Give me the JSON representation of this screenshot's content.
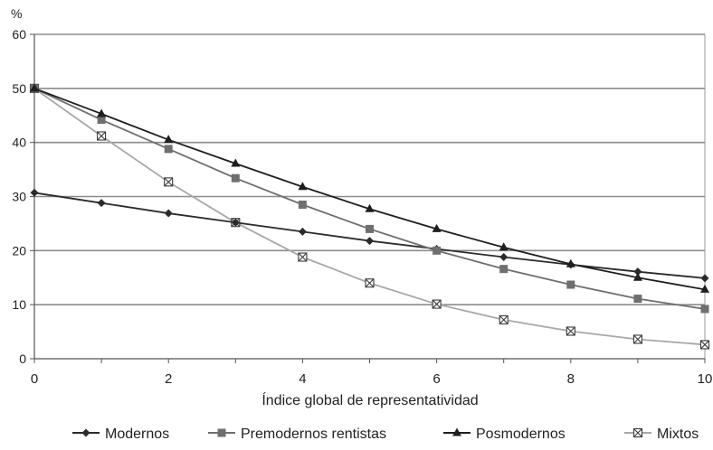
{
  "chart_data": {
    "type": "line",
    "title": "",
    "ylabel": "%",
    "xlabel": "Índice global de representatividad",
    "x": [
      0,
      1,
      2,
      3,
      4,
      5,
      6,
      7,
      8,
      9,
      10
    ],
    "xticks": [
      "0",
      "2",
      "4",
      "6",
      "8",
      "10"
    ],
    "xtick_values": [
      0,
      2,
      4,
      6,
      8,
      10
    ],
    "yticks": [
      "0",
      "10",
      "20",
      "30",
      "40",
      "50",
      "60"
    ],
    "ytick_values": [
      0,
      10,
      20,
      30,
      40,
      50,
      60
    ],
    "xlim": [
      0,
      10
    ],
    "ylim": [
      0,
      60
    ],
    "grid": "horizontal",
    "legend_position": "bottom",
    "series": [
      {
        "name": "Modernos",
        "marker": "diamond",
        "color": "#2b2b2b",
        "values": [
          30.7,
          28.8,
          26.9,
          25.2,
          23.5,
          21.8,
          20.3,
          18.8,
          17.4,
          16.1,
          14.9
        ]
      },
      {
        "name": "Premodernos rentistas",
        "marker": "square",
        "color": "#6f6f6f",
        "values": [
          50.0,
          44.2,
          38.8,
          33.4,
          28.5,
          24.0,
          20.0,
          16.6,
          13.7,
          11.1,
          9.2
        ]
      },
      {
        "name": "Posmodernos",
        "marker": "triangle",
        "color": "#1f1f1f",
        "values": [
          50.0,
          45.3,
          40.5,
          36.1,
          31.8,
          27.7,
          24.0,
          20.6,
          17.5,
          15.0,
          12.8
        ]
      },
      {
        "name": "Mixtos",
        "marker": "crossbox",
        "color": "#a8a8a8",
        "values": [
          50.0,
          41.2,
          32.7,
          25.2,
          18.8,
          14.0,
          10.1,
          7.2,
          5.1,
          3.6,
          2.6
        ]
      }
    ]
  }
}
